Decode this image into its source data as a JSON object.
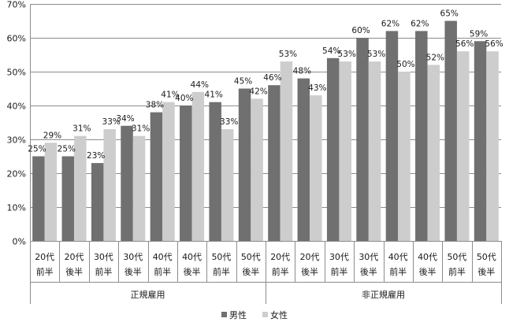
{
  "chart_data": {
    "type": "bar",
    "categories": [
      [
        "20代",
        "前半"
      ],
      [
        "20代",
        "後半"
      ],
      [
        "30代",
        "前半"
      ],
      [
        "30代",
        "後半"
      ],
      [
        "40代",
        "前半"
      ],
      [
        "40代",
        "後半"
      ],
      [
        "50代",
        "前半"
      ],
      [
        "50代",
        "後半"
      ],
      [
        "20代",
        "前半"
      ],
      [
        "20代",
        "後半"
      ],
      [
        "30代",
        "前半"
      ],
      [
        "30代",
        "後半"
      ],
      [
        "40代",
        "前半"
      ],
      [
        "40代",
        "後半"
      ],
      [
        "50代",
        "前半"
      ],
      [
        "50代",
        "後半"
      ]
    ],
    "groups": [
      {
        "label": "正規雇用",
        "start": 0,
        "count": 8
      },
      {
        "label": "非正規雇用",
        "start": 8,
        "count": 8
      }
    ],
    "series": [
      {
        "name": "男性",
        "color": "#707070",
        "values": [
          25,
          25,
          23,
          34,
          38,
          40,
          41,
          45,
          46,
          48,
          54,
          60,
          62,
          62,
          65,
          59
        ],
        "labels": [
          "25%",
          "25%",
          "23%",
          "34%",
          "38%",
          "40%",
          "41%",
          "45%",
          "46%",
          "48%",
          "54%",
          "60%",
          "62%",
          "62%",
          "65%",
          "59%"
        ]
      },
      {
        "name": "女性",
        "color": "#cdcdcd",
        "values": [
          29,
          31,
          33,
          31,
          41,
          44,
          33,
          42,
          53,
          43,
          53,
          53,
          50,
          52,
          56,
          56
        ],
        "labels": [
          "29%",
          "31%",
          "33%",
          "31%",
          "41%",
          "44%",
          "33%",
          "42%",
          "53%",
          "43%",
          "53%",
          "53%",
          "50%",
          "52%",
          "56%",
          "56%"
        ]
      }
    ],
    "ylim": [
      0,
      70
    ],
    "yticks": [
      "0%",
      "10%",
      "20%",
      "30%",
      "40%",
      "50%",
      "60%",
      "70%"
    ],
    "grid": true,
    "legend": "bottom"
  }
}
